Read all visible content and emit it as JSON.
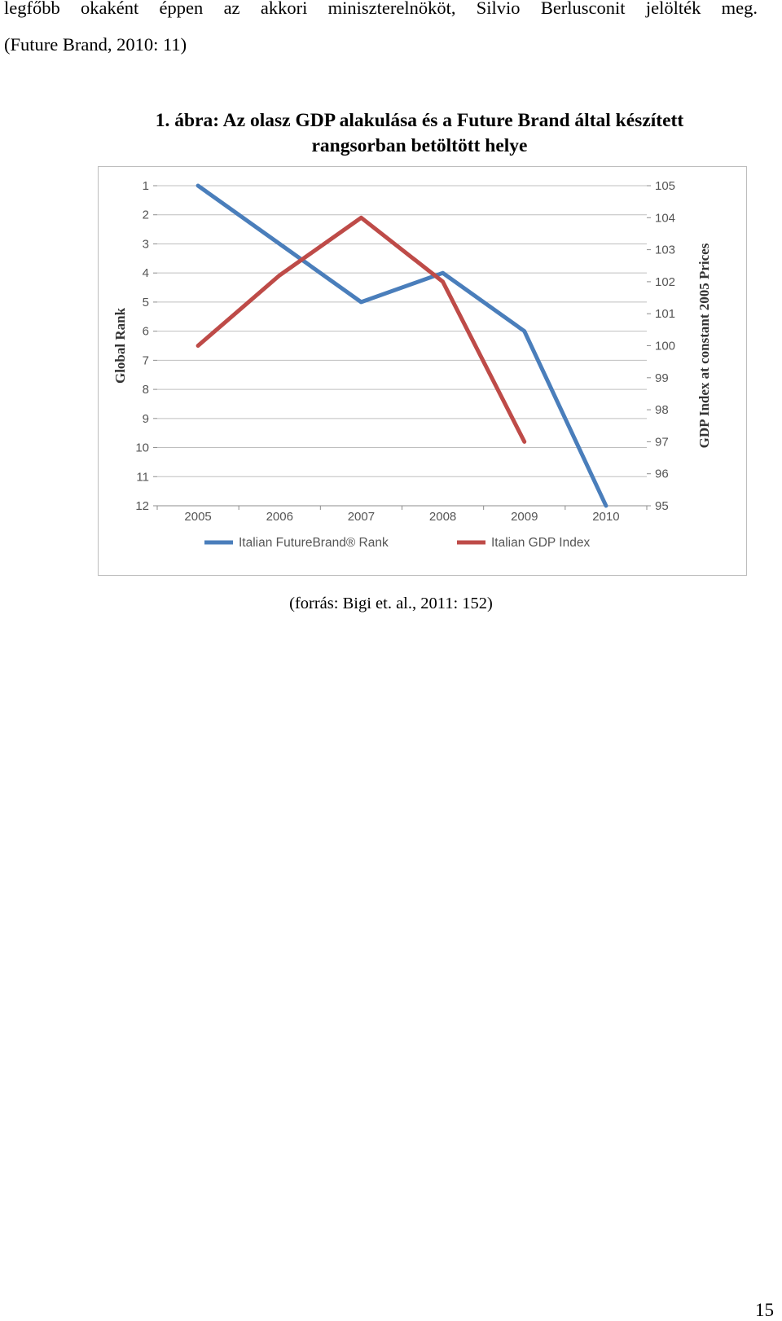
{
  "body": {
    "line1": "legfőbb okaként éppen az akkori miniszterelnököt, Silvio Berlusconit jelölték meg.",
    "line2": "(Future Brand, 2010: 11)"
  },
  "figure": {
    "caption_line1": "1.  ábra: Az olasz GDP alakulása és a Future Brand által készített",
    "caption_line2": "rangsorban betöltött helye",
    "source": "(forrás: Bigi et. al., 2011: 152)"
  },
  "page_number": "15",
  "chart_data": {
    "type": "line",
    "title": "",
    "x": [
      "2005",
      "2006",
      "2007",
      "2008",
      "2009",
      "2010"
    ],
    "ylabel_left": "Global Rank",
    "ylabel_right": "GDP Index at constant 2005 Prices",
    "y_left_range": [
      1,
      12
    ],
    "y_left_inverted": true,
    "y_left_ticks": [
      1,
      2,
      3,
      4,
      5,
      6,
      7,
      8,
      9,
      10,
      11,
      12
    ],
    "y_right_range": [
      95,
      105
    ],
    "y_right_ticks": [
      95,
      96,
      97,
      98,
      99,
      100,
      101,
      102,
      103,
      104,
      105
    ],
    "grid": true,
    "legend_position": "bottom",
    "series": [
      {
        "name": "Italian FutureBrand® Rank",
        "axis": "left",
        "color": "#4a7ebb",
        "values": [
          1,
          3,
          5,
          4,
          6,
          12
        ]
      },
      {
        "name": "Italian GDP Index",
        "axis": "right",
        "color": "#be4b48",
        "values": [
          100,
          102.2,
          104,
          102,
          97,
          null
        ]
      }
    ]
  }
}
